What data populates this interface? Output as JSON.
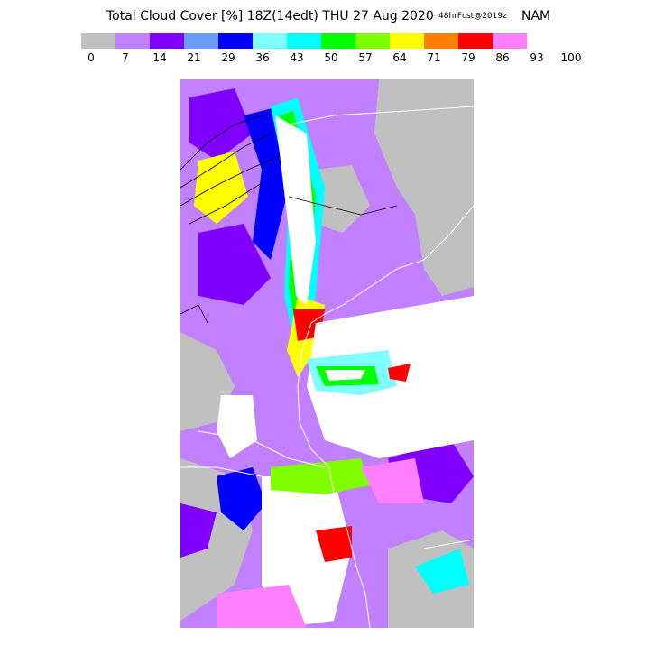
{
  "title": {
    "main": "Total Cloud Cover [%] 18Z(14edt) THU 27 Aug 2020",
    "forecast": "48hrFcst@2019z",
    "model": "NAM"
  },
  "colorbar": {
    "colors": [
      "#c0c0c0",
      "#c080ff",
      "#8000ff",
      "#6a9cff",
      "#0000ff",
      "#80ffff",
      "#00ffff",
      "#00ff00",
      "#80ff00",
      "#ffff00",
      "#ff8000",
      "#ff0000",
      "#ff80ff"
    ],
    "ticks": [
      "0",
      "7",
      "14",
      "21",
      "29",
      "36",
      "43",
      "50",
      "57",
      "64",
      "71",
      "79",
      "86",
      "93",
      "100"
    ]
  }
}
